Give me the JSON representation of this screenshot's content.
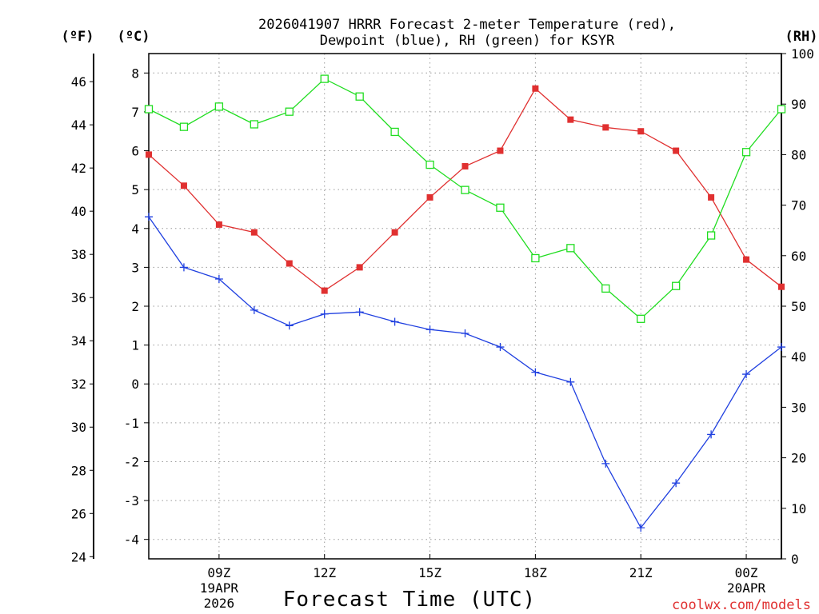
{
  "chart_data": {
    "type": "line",
    "title_lines": [
      "2026041907 HRRR Forecast 2-meter Temperature (red),",
      "Dewpoint (blue), RH (green) for KSYR"
    ],
    "xlabel": "Forecast Time (UTC)",
    "credit": "coolwx.com/models",
    "units": {
      "fahrenheit": "(ºF)",
      "celsius": "(ºC)",
      "rh": "(RH)"
    },
    "x_ticks": [
      {
        "hour": 9,
        "label": "09Z",
        "sub1": "19APR",
        "sub2": "2026"
      },
      {
        "hour": 12,
        "label": "12Z",
        "sub1": "",
        "sub2": ""
      },
      {
        "hour": 15,
        "label": "15Z",
        "sub1": "",
        "sub2": ""
      },
      {
        "hour": 18,
        "label": "18Z",
        "sub1": "",
        "sub2": ""
      },
      {
        "hour": 21,
        "label": "21Z",
        "sub1": "",
        "sub2": ""
      },
      {
        "hour": 24,
        "label": "00Z",
        "sub1": "20APR",
        "sub2": ""
      }
    ],
    "xlim": [
      7,
      25
    ],
    "celsius_ylim": [
      -4.5,
      8.5
    ],
    "rh_ylim": [
      0,
      100
    ],
    "celsius_ticks": [
      "8",
      "7",
      "6",
      "5",
      "4",
      "3",
      "2",
      "1",
      "0",
      "-1",
      "-2",
      "-3",
      "-4"
    ],
    "fahrenheit_ticks": [
      "46",
      "44",
      "42",
      "40",
      "38",
      "36",
      "34",
      "32",
      "30",
      "28",
      "26",
      "24"
    ],
    "rh_ticks": [
      "100",
      "90",
      "80",
      "70",
      "60",
      "50",
      "40",
      "30",
      "20",
      "10",
      "0"
    ],
    "x": [
      7,
      8,
      9,
      10,
      11,
      12,
      13,
      14,
      15,
      16,
      17,
      18,
      19,
      20,
      21,
      22,
      23,
      24,
      25
    ],
    "series": [
      {
        "name": "Temperature",
        "axis": "celsius",
        "color": "#e03030",
        "marker": "filled-square",
        "values": [
          5.9,
          5.1,
          4.1,
          3.9,
          3.1,
          2.4,
          3.0,
          3.9,
          4.8,
          5.6,
          6.0,
          7.6,
          6.8,
          6.6,
          6.5,
          6.0,
          4.8,
          3.2,
          2.5
        ]
      },
      {
        "name": "Dewpoint",
        "axis": "celsius",
        "color": "#2040e0",
        "marker": "plus",
        "values": [
          4.3,
          3.0,
          2.7,
          1.9,
          1.5,
          1.8,
          1.85,
          1.6,
          1.4,
          1.3,
          0.95,
          0.3,
          0.05,
          -2.05,
          -3.7,
          -2.55,
          -1.3,
          0.25,
          0.95
        ]
      },
      {
        "name": "RH",
        "axis": "rh",
        "color": "#20dd20",
        "marker": "open-square",
        "values": [
          89,
          85.5,
          89.5,
          86,
          88.5,
          95,
          91.5,
          84.5,
          78,
          73,
          69.5,
          59.5,
          61.5,
          53.5,
          47.5,
          54,
          64,
          80.5,
          89
        ]
      }
    ]
  }
}
